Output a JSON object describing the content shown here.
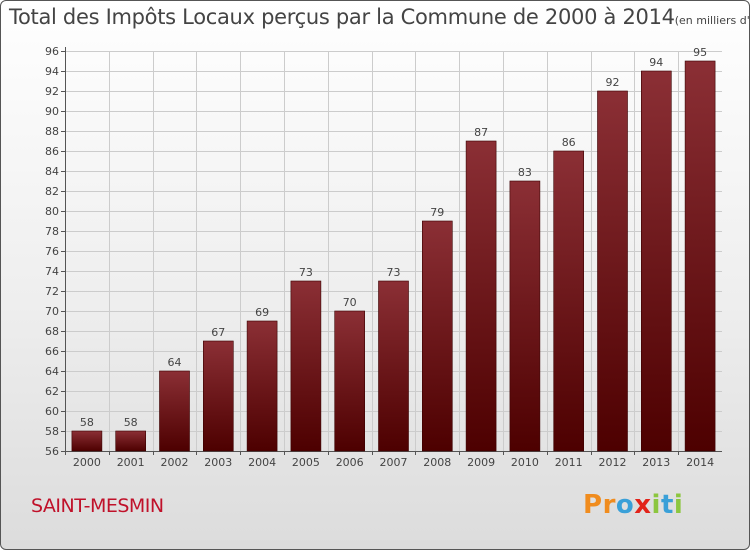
{
  "chart_data": {
    "type": "bar",
    "title": "Total des Impôts Locaux perçus par la Commune de 2000 à 2014",
    "unit_label": "(en milliers d'€)",
    "xlabel": "",
    "ylabel": "",
    "categories": [
      "2000",
      "2001",
      "2002",
      "2003",
      "2004",
      "2005",
      "2006",
      "2007",
      "2008",
      "2009",
      "2010",
      "2011",
      "2012",
      "2013",
      "2014"
    ],
    "values": [
      58,
      58,
      64,
      67,
      69,
      73,
      70,
      73,
      79,
      87,
      83,
      86,
      92,
      94,
      95
    ],
    "ylim": [
      56,
      96
    ],
    "yticks": [
      56,
      58,
      60,
      62,
      64,
      66,
      68,
      70,
      72,
      74,
      76,
      78,
      80,
      82,
      84,
      86,
      88,
      90,
      92,
      94,
      96
    ],
    "grid": true,
    "bar_color_top": "#8b2f35",
    "bar_color_bottom": "#4d0000"
  },
  "commune": "SAINT-MESMIN",
  "logo": {
    "letters": [
      "P",
      "r",
      "o",
      "x",
      "i",
      "t",
      "i"
    ],
    "colors": [
      "#f08c1e",
      "#f08c1e",
      "#3aa0d8",
      "#e2231a",
      "#8cc63f",
      "#3aa0d8",
      "#8cc63f"
    ]
  }
}
